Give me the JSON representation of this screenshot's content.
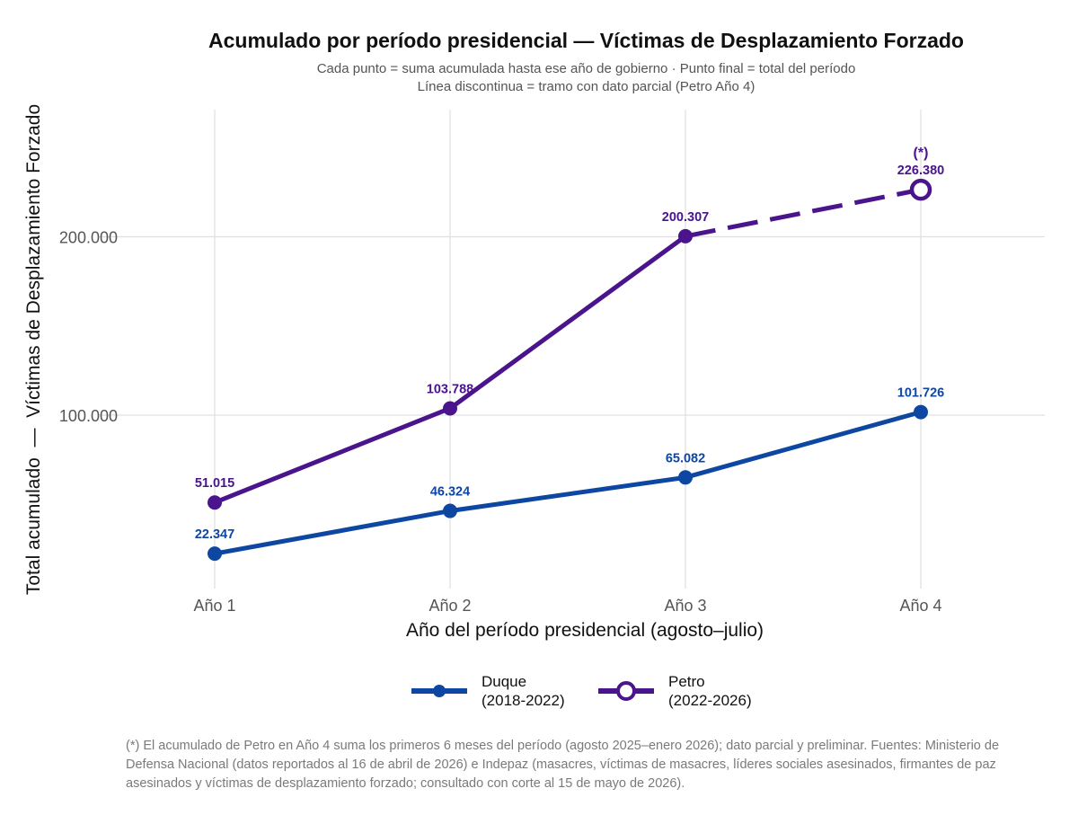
{
  "title": "Acumulado por período presidencial — Víctimas de Desplazamiento Forzado",
  "subtitle_line1": "Cada punto = suma acumulada hasta ese año de gobierno  ·  Punto final = total del período",
  "subtitle_line2": "Línea discontinua = tramo con dato parcial (Petro Año 4)",
  "caption": "(*) El acumulado de Petro en Año 4 suma los primeros 6 meses del período (agosto 2025–enero 2026); dato parcial y preliminar. Fuentes: Ministerio de Defensa Nacional (datos reportados al 16 de abril de 2026) e Indepaz (masacres, víctimas de masacres, líderes sociales asesinados, firmantes de paz asesinados y víctimas de desplazamiento forzado; consultado con corte al 15 de mayo de 2026).",
  "legend": [
    {
      "name_line1": "Duque",
      "name_line2": "(2018-2022)",
      "color": "#0d47a1",
      "marker": "filled-circle"
    },
    {
      "name_line1": "Petro",
      "name_line2": "(2022-2026)",
      "color": "#4a148c",
      "marker": "hollow-circle"
    }
  ],
  "chart_data": {
    "type": "line",
    "title": "Acumulado por período presidencial — Víctimas de Desplazamiento Forzado",
    "xlabel": "Año del período presidencial (agosto–julio)",
    "ylabel": "Total acumulado  —  Víctimas de Desplazamiento Forzado",
    "categories": [
      "Año 1",
      "Año 2",
      "Año 3",
      "Año 4"
    ],
    "ylim": [
      0,
      260000
    ],
    "yticks": [
      100000,
      200000
    ],
    "ytick_labels": [
      "100.000",
      "200.000"
    ],
    "grid": true,
    "legend_position": "bottom",
    "series": [
      {
        "name": "Duque (2018-2022)",
        "color": "#0d47a1",
        "values": [
          22347,
          46324,
          65082,
          101726
        ],
        "labels": [
          "22.347",
          "46.324",
          "65.082",
          "101.726"
        ],
        "partial_last_segment": false
      },
      {
        "name": "Petro (2022-2026)",
        "color": "#4a148c",
        "values": [
          51015,
          103788,
          200307,
          226380
        ],
        "labels": [
          "51.015",
          "103.788",
          "200.307",
          "226.380"
        ],
        "partial_last_segment": true,
        "partial_note": "(*)"
      }
    ]
  }
}
